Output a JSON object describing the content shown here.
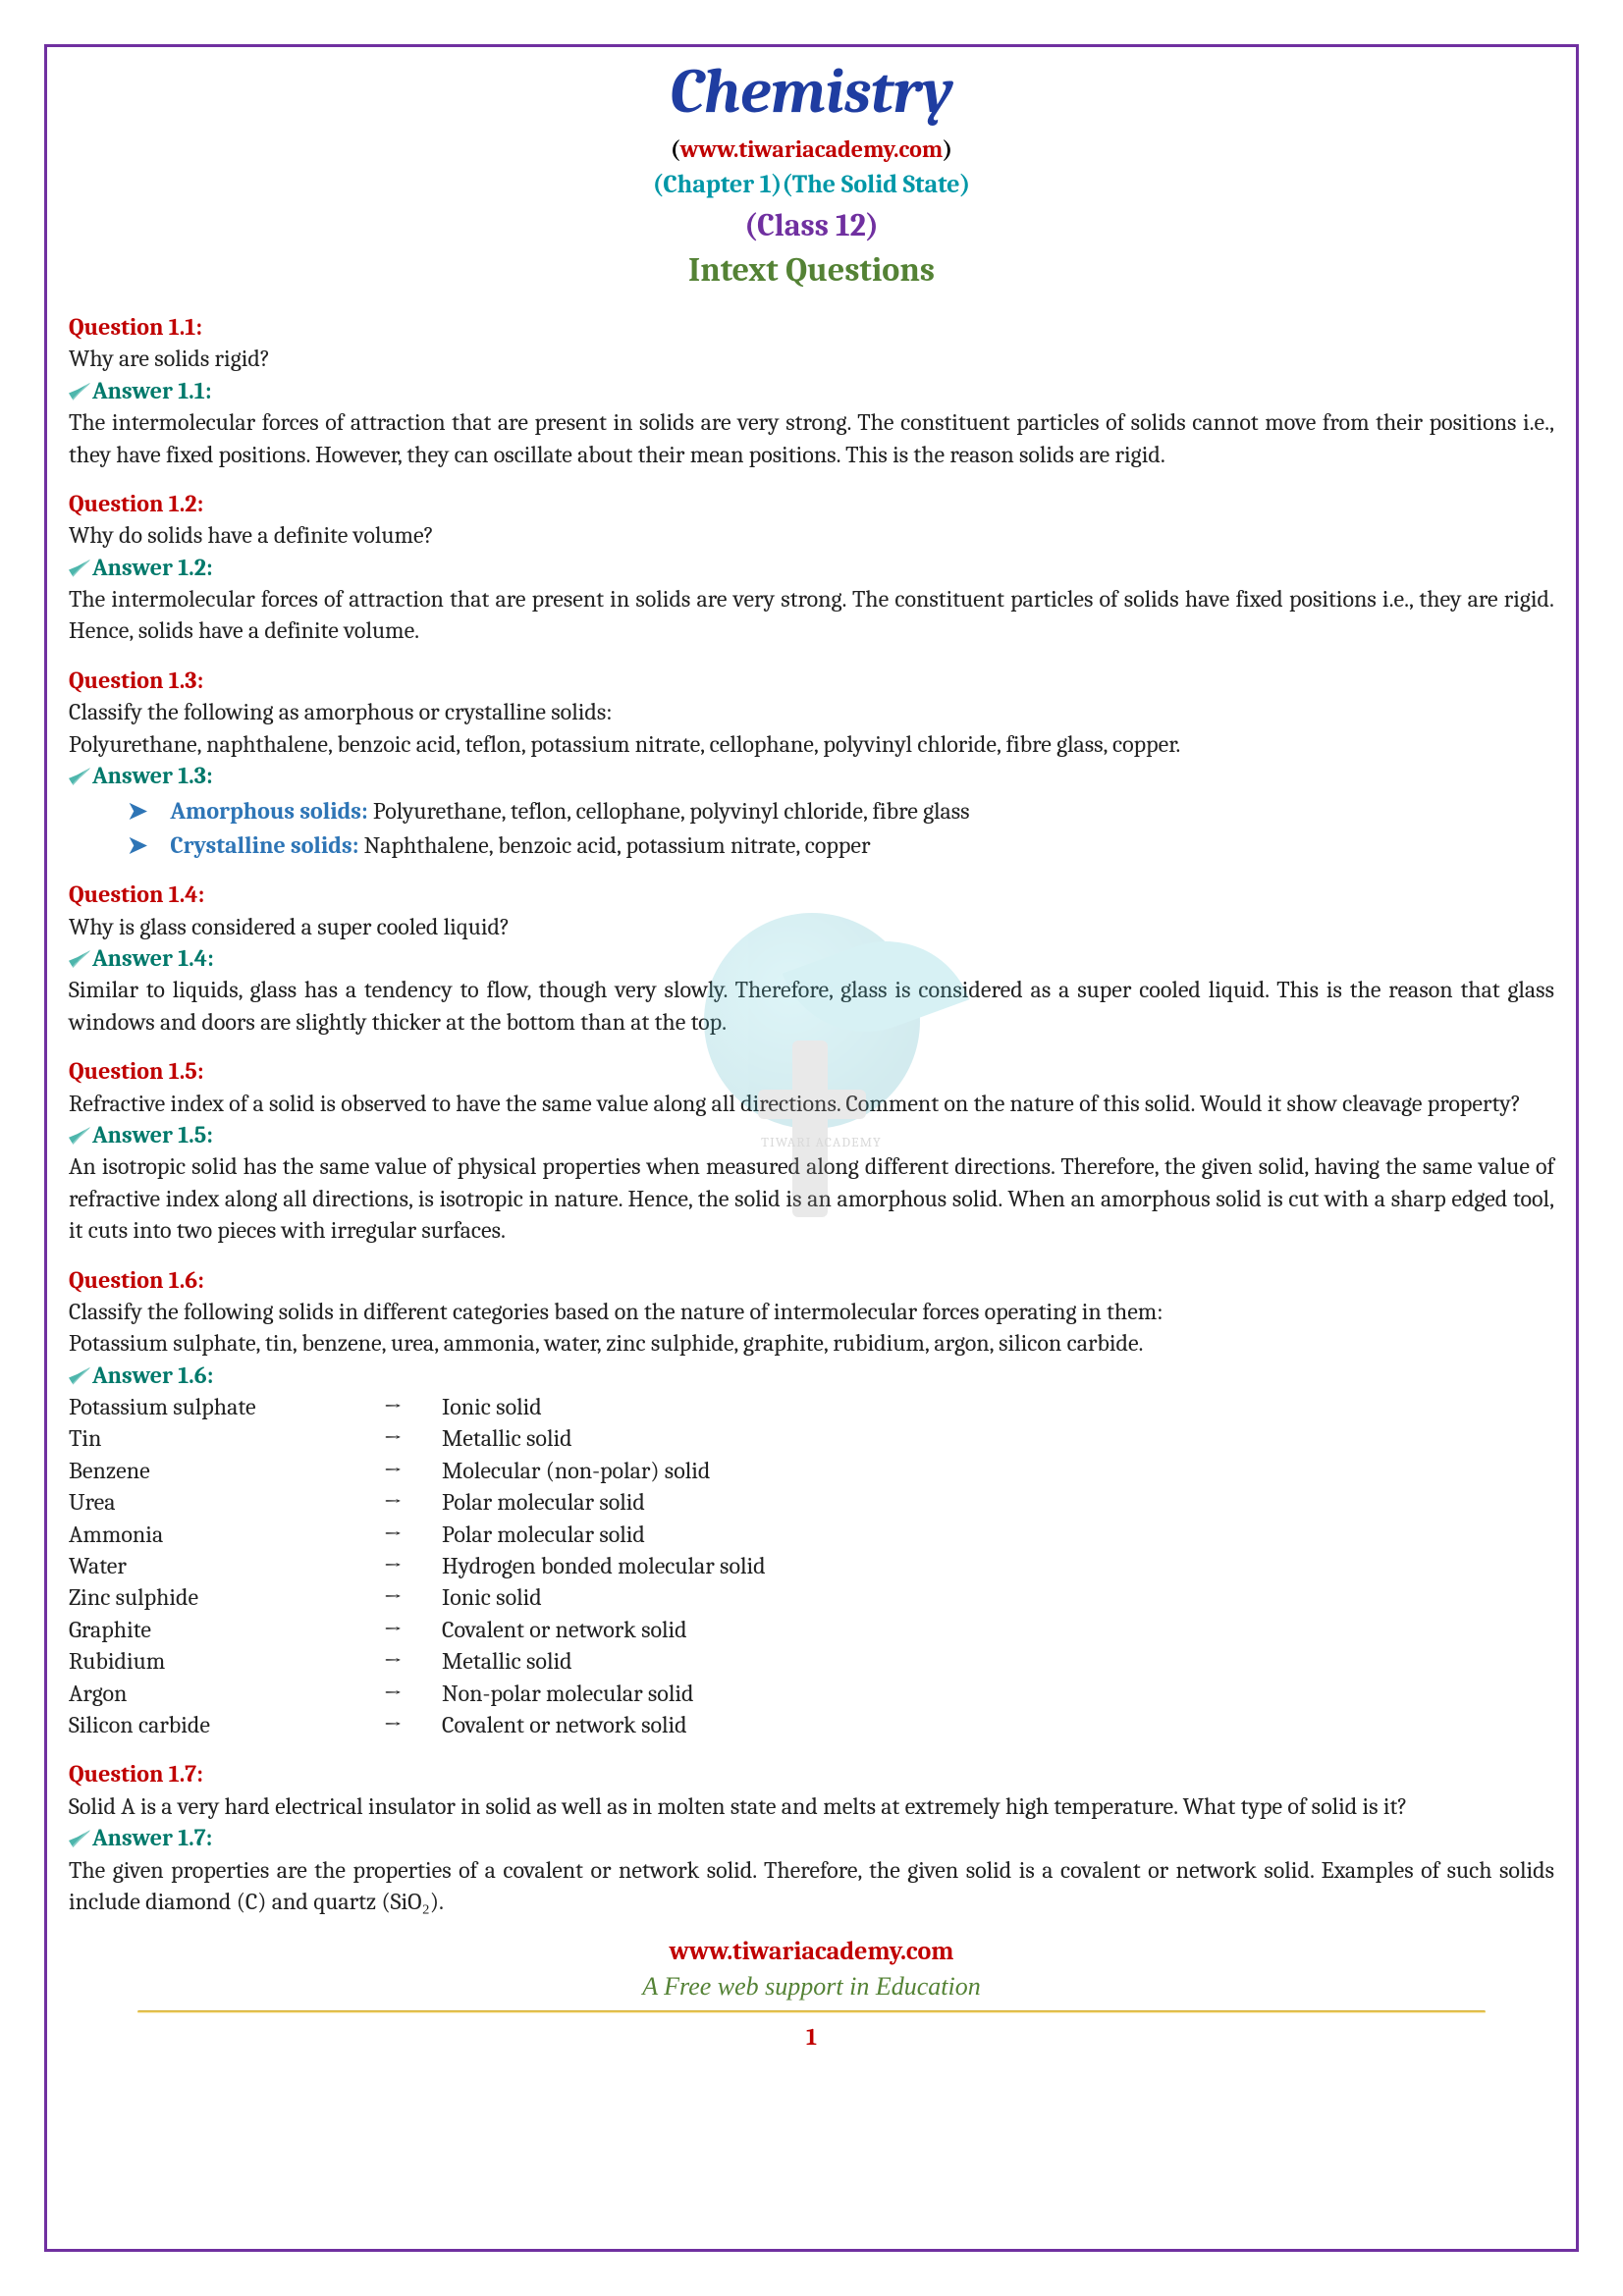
{
  "header": {
    "title": "Chemistry",
    "website": "www.tiwariacademy.com",
    "chapter": "(Chapter 1)(The Solid State)",
    "class": "(Class 12)",
    "section": "Intext Questions"
  },
  "colors": {
    "title": "#1f3da1",
    "chapter": "#0097a7",
    "class": "#7030a0",
    "section": "#548235",
    "question": "#c00000",
    "answer": "#00796b",
    "bullet": "#2e75b6",
    "border": "#7030a0",
    "footer_link": "#c00000",
    "footer_tag": "#548235"
  },
  "q1": {
    "label": "Question 1.1:",
    "text": "Why are solids rigid?",
    "answer_label": "Answer 1.1:",
    "answer": "The intermolecular forces of attraction that are present in solids are very strong. The constituent particles of solids cannot move from their positions i.e., they have fixed positions. However, they can oscillate about their mean positions. This is the reason solids are rigid."
  },
  "q2": {
    "label": "Question 1.2:",
    "text": "Why do solids have a definite volume?",
    "answer_label": "Answer 1.2:",
    "answer": "The intermolecular forces of attraction that are present in solids are very strong. The constituent particles of solids have fixed positions i.e., they are rigid. Hence, solids have a definite volume."
  },
  "q3": {
    "label": "Question 1.3:",
    "text1": "Classify the following as amorphous or crystalline solids:",
    "text2": "Polyurethane, naphthalene, benzoic acid, teflon, potassium nitrate, cellophane, polyvinyl chloride, fibre glass, copper.",
    "answer_label": "Answer 1.3:",
    "b1_label": "Amorphous solids:",
    "b1_text": " Polyurethane, teflon, cellophane, polyvinyl chloride, fibre glass",
    "b2_label": "Crystalline solids:",
    "b2_text": " Naphthalene, benzoic acid, potassium nitrate, copper"
  },
  "q4": {
    "label": "Question 1.4:",
    "text": "Why is glass considered a super cooled liquid?",
    "answer_label": "Answer 1.4:",
    "answer": "Similar to liquids, glass has a tendency to flow, though very slowly. Therefore, glass is considered as a super cooled liquid. This is the reason that glass windows and doors are slightly thicker at the bottom than at the top."
  },
  "q5": {
    "label": "Question 1.5:",
    "text": "Refractive index of a solid is observed to have the same value along all directions. Comment on the nature of this solid. Would it show cleavage property?",
    "answer_label": "Answer 1.5:",
    "answer": "An isotropic solid has the same value of physical properties when measured along different directions. Therefore, the given solid, having the same value of refractive index along all directions, is isotropic in nature. Hence, the solid is an amorphous solid. When an amorphous solid is cut with a sharp edged tool, it cuts into two pieces with irregular surfaces."
  },
  "q6": {
    "label": "Question 1.6:",
    "text1": "Classify the following solids in different categories based on the nature of intermolecular forces operating in them:",
    "text2": "Potassium sulphate, tin, benzene, urea, ammonia, water, zinc sulphide, graphite, rubidium, argon, silicon carbide.",
    "answer_label": "Answer 1.6:",
    "rows": [
      {
        "c1": "Potassium sulphate",
        "c2": "→",
        "c3": "Ionic solid"
      },
      {
        "c1": "Tin",
        "c2": "→",
        "c3": "Metallic solid"
      },
      {
        "c1": "Benzene",
        "c2": "→",
        "c3": "Molecular (non-polar) solid"
      },
      {
        "c1": "Urea",
        "c2": "→",
        "c3": "Polar molecular solid"
      },
      {
        "c1": "Ammonia",
        "c2": "→",
        "c3": "Polar molecular solid"
      },
      {
        "c1": "Water",
        "c2": "→",
        "c3": "Hydrogen bonded molecular solid"
      },
      {
        "c1": "Zinc sulphide",
        "c2": "→",
        "c3": "Ionic solid"
      },
      {
        "c1": "Graphite",
        "c2": "→",
        "c3": "Covalent or network solid"
      },
      {
        "c1": "Rubidium",
        "c2": "→",
        "c3": "Metallic solid"
      },
      {
        "c1": "Argon",
        "c2": "→",
        "c3": "Non-polar molecular solid"
      },
      {
        "c1": "Silicon carbide",
        "c2": "→",
        "c3": "Covalent or network solid"
      }
    ]
  },
  "q7": {
    "label": "Question 1.7:",
    "text": "Solid A is a very hard electrical insulator in solid as well as in molten state and melts at extremely high temperature. What type of solid is it?",
    "answer_label": "Answer 1.7:",
    "answer": "The given properties are the properties of a covalent or network solid. Therefore, the given solid is a covalent or network solid. Examples of such solids include diamond (C) and quartz (SiO₂)."
  },
  "footer": {
    "link": "www.tiwariacademy.com",
    "tagline": "A Free web support in Education",
    "page": "1"
  }
}
